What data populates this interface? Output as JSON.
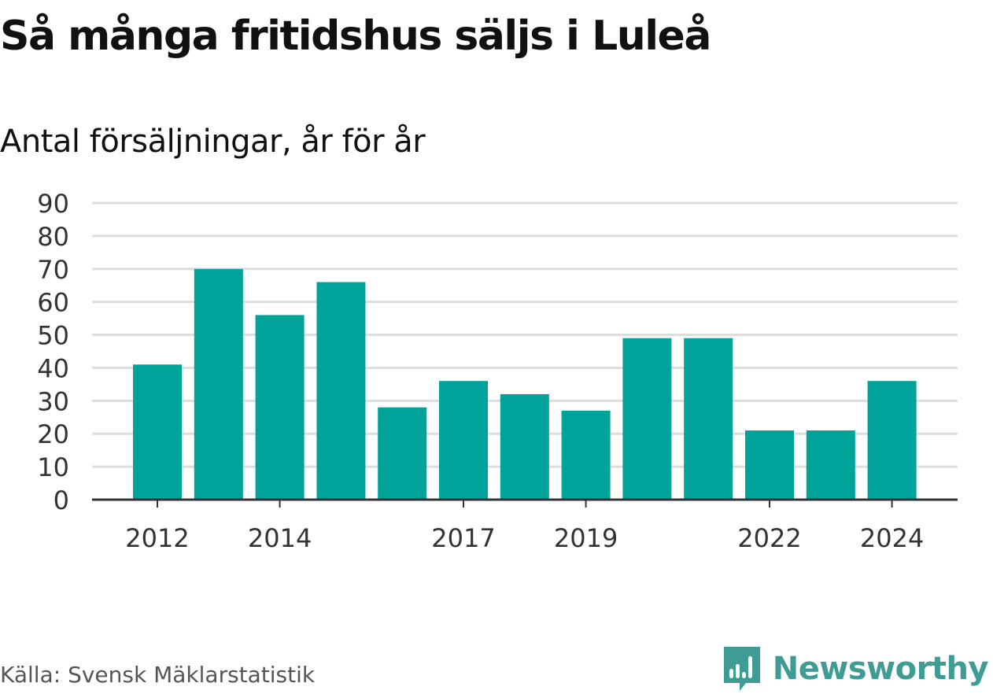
{
  "header": {
    "title": "Så många fritidshus säljs i Luleå",
    "subtitle": "Antal försäljningar, år för år"
  },
  "footer": {
    "source": "Källa: Svensk Mäklarstatistik",
    "brand": "Newsworthy",
    "brand_icon": "newsworthy-logo-icon"
  },
  "colors": {
    "bar": "#00a39a",
    "grid": "#dddddd",
    "axis": "#333333",
    "brand": "#3f9c94"
  },
  "chart_data": {
    "type": "bar",
    "categories": [
      "2012",
      "2013",
      "2014",
      "2015",
      "2016",
      "2017",
      "2018",
      "2019",
      "2020",
      "2021",
      "2022",
      "2023",
      "2024"
    ],
    "values": [
      41,
      70,
      56,
      66,
      28,
      36,
      32,
      27,
      49,
      49,
      21,
      21,
      36
    ],
    "x_tick_labels": [
      "2012",
      "2014",
      "2017",
      "2019",
      "2022",
      "2024"
    ],
    "y_ticks": [
      0,
      10,
      20,
      30,
      40,
      50,
      60,
      70,
      80,
      90
    ],
    "ylim": [
      0,
      90
    ],
    "grid": true,
    "legend": "none"
  }
}
